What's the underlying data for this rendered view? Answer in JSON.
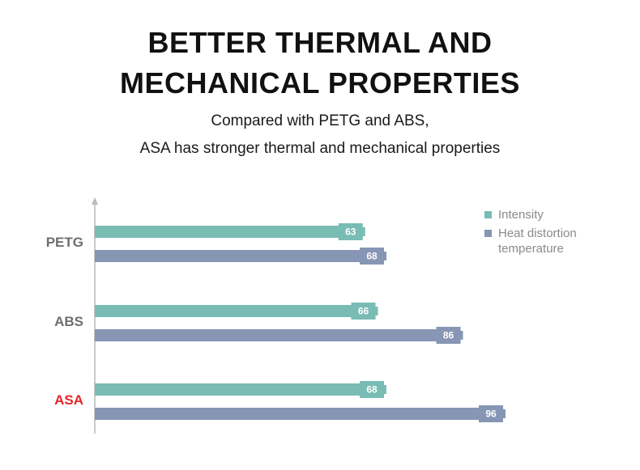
{
  "header": {
    "title_line1": "BETTER THERMAL AND",
    "title_line2": "MECHANICAL PROPERTIES",
    "subtitle_line1": "Compared with PETG and ABS,",
    "subtitle_line2": "ASA has stronger thermal and mechanical properties"
  },
  "colors": {
    "intensity": "#78bcb4",
    "heat": "#8696b4",
    "highlight_label": "#e8242a",
    "normal_label": "#6e6e6e"
  },
  "chart_data": {
    "type": "bar",
    "orientation": "horizontal",
    "categories": [
      "PETG",
      "ABS",
      "ASA"
    ],
    "highlight": "ASA",
    "series": [
      {
        "name": "Intensity",
        "values": [
          63,
          66,
          68
        ]
      },
      {
        "name": "Heat distortion temperature",
        "values": [
          68,
          86,
          96
        ]
      }
    ],
    "legend": {
      "position": "top-right",
      "entries": [
        "Intensity",
        "Heat distortion",
        "temperature"
      ]
    },
    "xlim": [
      0,
      100
    ],
    "grid": false
  }
}
